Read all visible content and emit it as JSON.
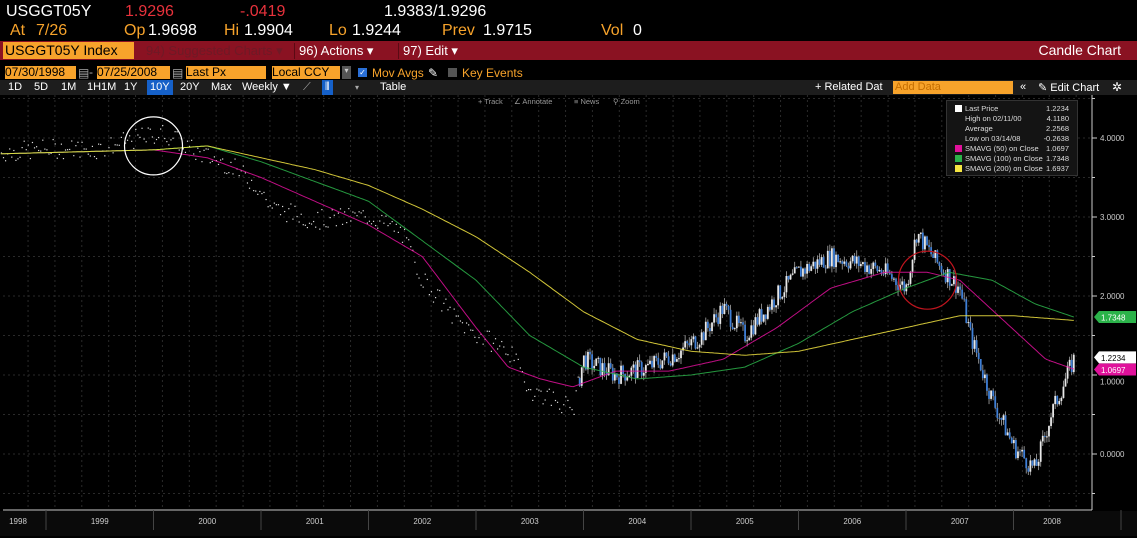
{
  "quote": {
    "ticker": "USGGT05Y",
    "last": "1.9296",
    "change": "-.0419",
    "bid_ask": "1.9383/1.9296",
    "at_label": "At",
    "at_value": "7/26",
    "open_label": "Op",
    "open": "1.9698",
    "high_label": "Hi",
    "high": "1.9904",
    "low_label": "Lo",
    "low": "1.9244",
    "prev_label": "Prev",
    "prev": "1.9715",
    "vol_label": "Vol",
    "vol": "0"
  },
  "menubar": {
    "security": "USGGT05Y Index",
    "suggested": "94) Suggested Charts ▾",
    "actions": "96) Actions ▾",
    "edit": "97) Edit ▾",
    "chart_type": "Candle Chart"
  },
  "controls": {
    "start_date": "07/30/1998",
    "end_date": "07/25/2008",
    "field": "Last Px",
    "currency": "Local CCY",
    "mov_avgs": "Mov Avgs",
    "mov_avgs_checked": true,
    "key_events": "Key Events",
    "key_events_checked": false
  },
  "toolbar": {
    "ranges": [
      "1D",
      "5D",
      "1M",
      "1H1M",
      "1Y",
      "10Y",
      "20Y",
      "Max"
    ],
    "selected_range": "10Y",
    "frequency": "Weekly ▼",
    "table": "Table",
    "related": "+ Related Dat",
    "add_data_placeholder": "Add Data",
    "collapse": "«",
    "edit_chart": "Edit Chart",
    "settings_icon": "gear-icon"
  },
  "chart_tools": {
    "track": "Track",
    "annotate": "Annotate",
    "news": "News",
    "zoom": "Zoom"
  },
  "legend": [
    {
      "label": "Last Price",
      "value": "1.2234",
      "color": "#ffffff"
    },
    {
      "label": "High on 02/11/00",
      "value": "4.1180"
    },
    {
      "label": "Average",
      "value": "2.2568"
    },
    {
      "label": "Low on 03/14/08",
      "value": "-0.2638"
    },
    {
      "label": "SMAVG (50)  on Close",
      "value": "1.0697",
      "color": "#e0119b"
    },
    {
      "label": "SMAVG (100)  on Close",
      "value": "1.7348",
      "color": "#2bb34a"
    },
    {
      "label": "SMAVG (200)  on Close",
      "value": "1.6937",
      "color": "#f5e642"
    }
  ],
  "chart_data": {
    "type": "candlestick",
    "frequency": "weekly",
    "xlim": [
      1998.58,
      2008.57
    ],
    "ylim": [
      -0.7,
      4.6
    ],
    "y_ticks": [
      "4.0000",
      "3.0000",
      "2.0000",
      "1.0000",
      "0.0000"
    ],
    "x_ticks": [
      "1998",
      "1999",
      "2000",
      "2001",
      "2002",
      "2003",
      "2004",
      "2005",
      "2006",
      "2007",
      "2008"
    ],
    "right_axis_tags": [
      {
        "value": "1.7348",
        "color": "#2bb34a"
      },
      {
        "value": "1.2234",
        "color": "#ffffff"
      },
      {
        "value": "1.0697",
        "color": "#e0119b"
      }
    ],
    "grid": true,
    "legend_position": "top-right",
    "price_approx": [
      [
        1998.58,
        3.8
      ],
      [
        1999.0,
        3.85
      ],
      [
        1999.5,
        3.85
      ],
      [
        1999.9,
        4.0
      ],
      [
        2000.1,
        4.05
      ],
      [
        2000.4,
        3.8
      ],
      [
        2000.7,
        3.65
      ],
      [
        2000.95,
        3.4
      ],
      [
        2001.1,
        3.1
      ],
      [
        2001.5,
        2.95
      ],
      [
        2002.0,
        3.0
      ],
      [
        2002.3,
        2.8
      ],
      [
        2002.5,
        2.2
      ],
      [
        2002.8,
        1.7
      ],
      [
        2003.0,
        1.5
      ],
      [
        2003.3,
        1.3
      ],
      [
        2003.5,
        0.8
      ],
      [
        2003.7,
        0.7
      ],
      [
        2003.9,
        0.55
      ],
      [
        2004.0,
        1.2
      ],
      [
        2004.3,
        1.0
      ],
      [
        2004.6,
        1.1
      ],
      [
        2004.9,
        1.3
      ],
      [
        2005.1,
        1.5
      ],
      [
        2005.3,
        1.85
      ],
      [
        2005.5,
        1.5
      ],
      [
        2005.8,
        2.0
      ],
      [
        2006.0,
        2.3
      ],
      [
        2006.3,
        2.5
      ],
      [
        2006.6,
        2.4
      ],
      [
        2006.8,
        2.3
      ],
      [
        2007.0,
        2.1
      ],
      [
        2007.1,
        2.8
      ],
      [
        2007.3,
        2.4
      ],
      [
        2007.5,
        2.1
      ],
      [
        2007.6,
        1.5
      ],
      [
        2007.8,
        0.7
      ],
      [
        2008.0,
        0.1
      ],
      [
        2008.2,
        -0.2
      ],
      [
        2008.35,
        0.5
      ],
      [
        2008.5,
        1.0
      ],
      [
        2008.57,
        1.22
      ]
    ],
    "series": [
      {
        "name": "SMAVG (50)  on Close",
        "color": "#e0119b",
        "points": [
          [
            1998.58,
            3.8
          ],
          [
            2000.0,
            3.85
          ],
          [
            2000.5,
            3.75
          ],
          [
            2001.0,
            3.5
          ],
          [
            2001.5,
            3.2
          ],
          [
            2002.0,
            2.9
          ],
          [
            2002.5,
            2.5
          ],
          [
            2003.0,
            1.6
          ],
          [
            2003.3,
            1.1
          ],
          [
            2003.6,
            0.95
          ],
          [
            2003.9,
            0.85
          ],
          [
            2004.3,
            1.05
          ],
          [
            2004.8,
            1.05
          ],
          [
            2005.3,
            1.2
          ],
          [
            2005.8,
            1.6
          ],
          [
            2006.3,
            2.1
          ],
          [
            2006.8,
            2.3
          ],
          [
            2007.2,
            2.3
          ],
          [
            2007.5,
            2.2
          ],
          [
            2007.9,
            1.7
          ],
          [
            2008.3,
            1.2
          ],
          [
            2008.57,
            1.07
          ]
        ]
      },
      {
        "name": "SMAVG (100)  on Close",
        "color": "#2bb34a",
        "points": [
          [
            1998.58,
            3.8
          ],
          [
            2000.0,
            3.85
          ],
          [
            2000.5,
            3.9
          ],
          [
            2001.0,
            3.7
          ],
          [
            2001.5,
            3.45
          ],
          [
            2002.0,
            3.2
          ],
          [
            2002.5,
            2.7
          ],
          [
            2003.0,
            2.2
          ],
          [
            2003.5,
            1.5
          ],
          [
            2004.0,
            1.1
          ],
          [
            2004.5,
            0.95
          ],
          [
            2005.0,
            1.0
          ],
          [
            2005.5,
            1.1
          ],
          [
            2006.0,
            1.4
          ],
          [
            2006.5,
            1.8
          ],
          [
            2007.0,
            2.1
          ],
          [
            2007.4,
            2.3
          ],
          [
            2007.8,
            2.2
          ],
          [
            2008.2,
            1.9
          ],
          [
            2008.57,
            1.73
          ]
        ]
      },
      {
        "name": "SMAVG (200)  on Close",
        "color": "#f5e642",
        "points": [
          [
            1998.58,
            3.8
          ],
          [
            2000.0,
            3.85
          ],
          [
            2000.5,
            3.9
          ],
          [
            2001.0,
            3.75
          ],
          [
            2001.5,
            3.6
          ],
          [
            2002.0,
            3.4
          ],
          [
            2002.5,
            3.1
          ],
          [
            2003.0,
            2.75
          ],
          [
            2003.5,
            2.3
          ],
          [
            2004.0,
            1.8
          ],
          [
            2004.5,
            1.45
          ],
          [
            2005.0,
            1.3
          ],
          [
            2005.5,
            1.25
          ],
          [
            2006.0,
            1.3
          ],
          [
            2006.5,
            1.45
          ],
          [
            2007.0,
            1.6
          ],
          [
            2007.5,
            1.75
          ],
          [
            2008.0,
            1.75
          ],
          [
            2008.57,
            1.69
          ]
        ]
      }
    ],
    "annotations": [
      {
        "shape": "circle",
        "color": "#ffffff",
        "at": [
          2000.0,
          3.9
        ]
      },
      {
        "shape": "circle",
        "color": "#c0141e",
        "at": [
          2007.2,
          2.2
        ]
      }
    ]
  }
}
